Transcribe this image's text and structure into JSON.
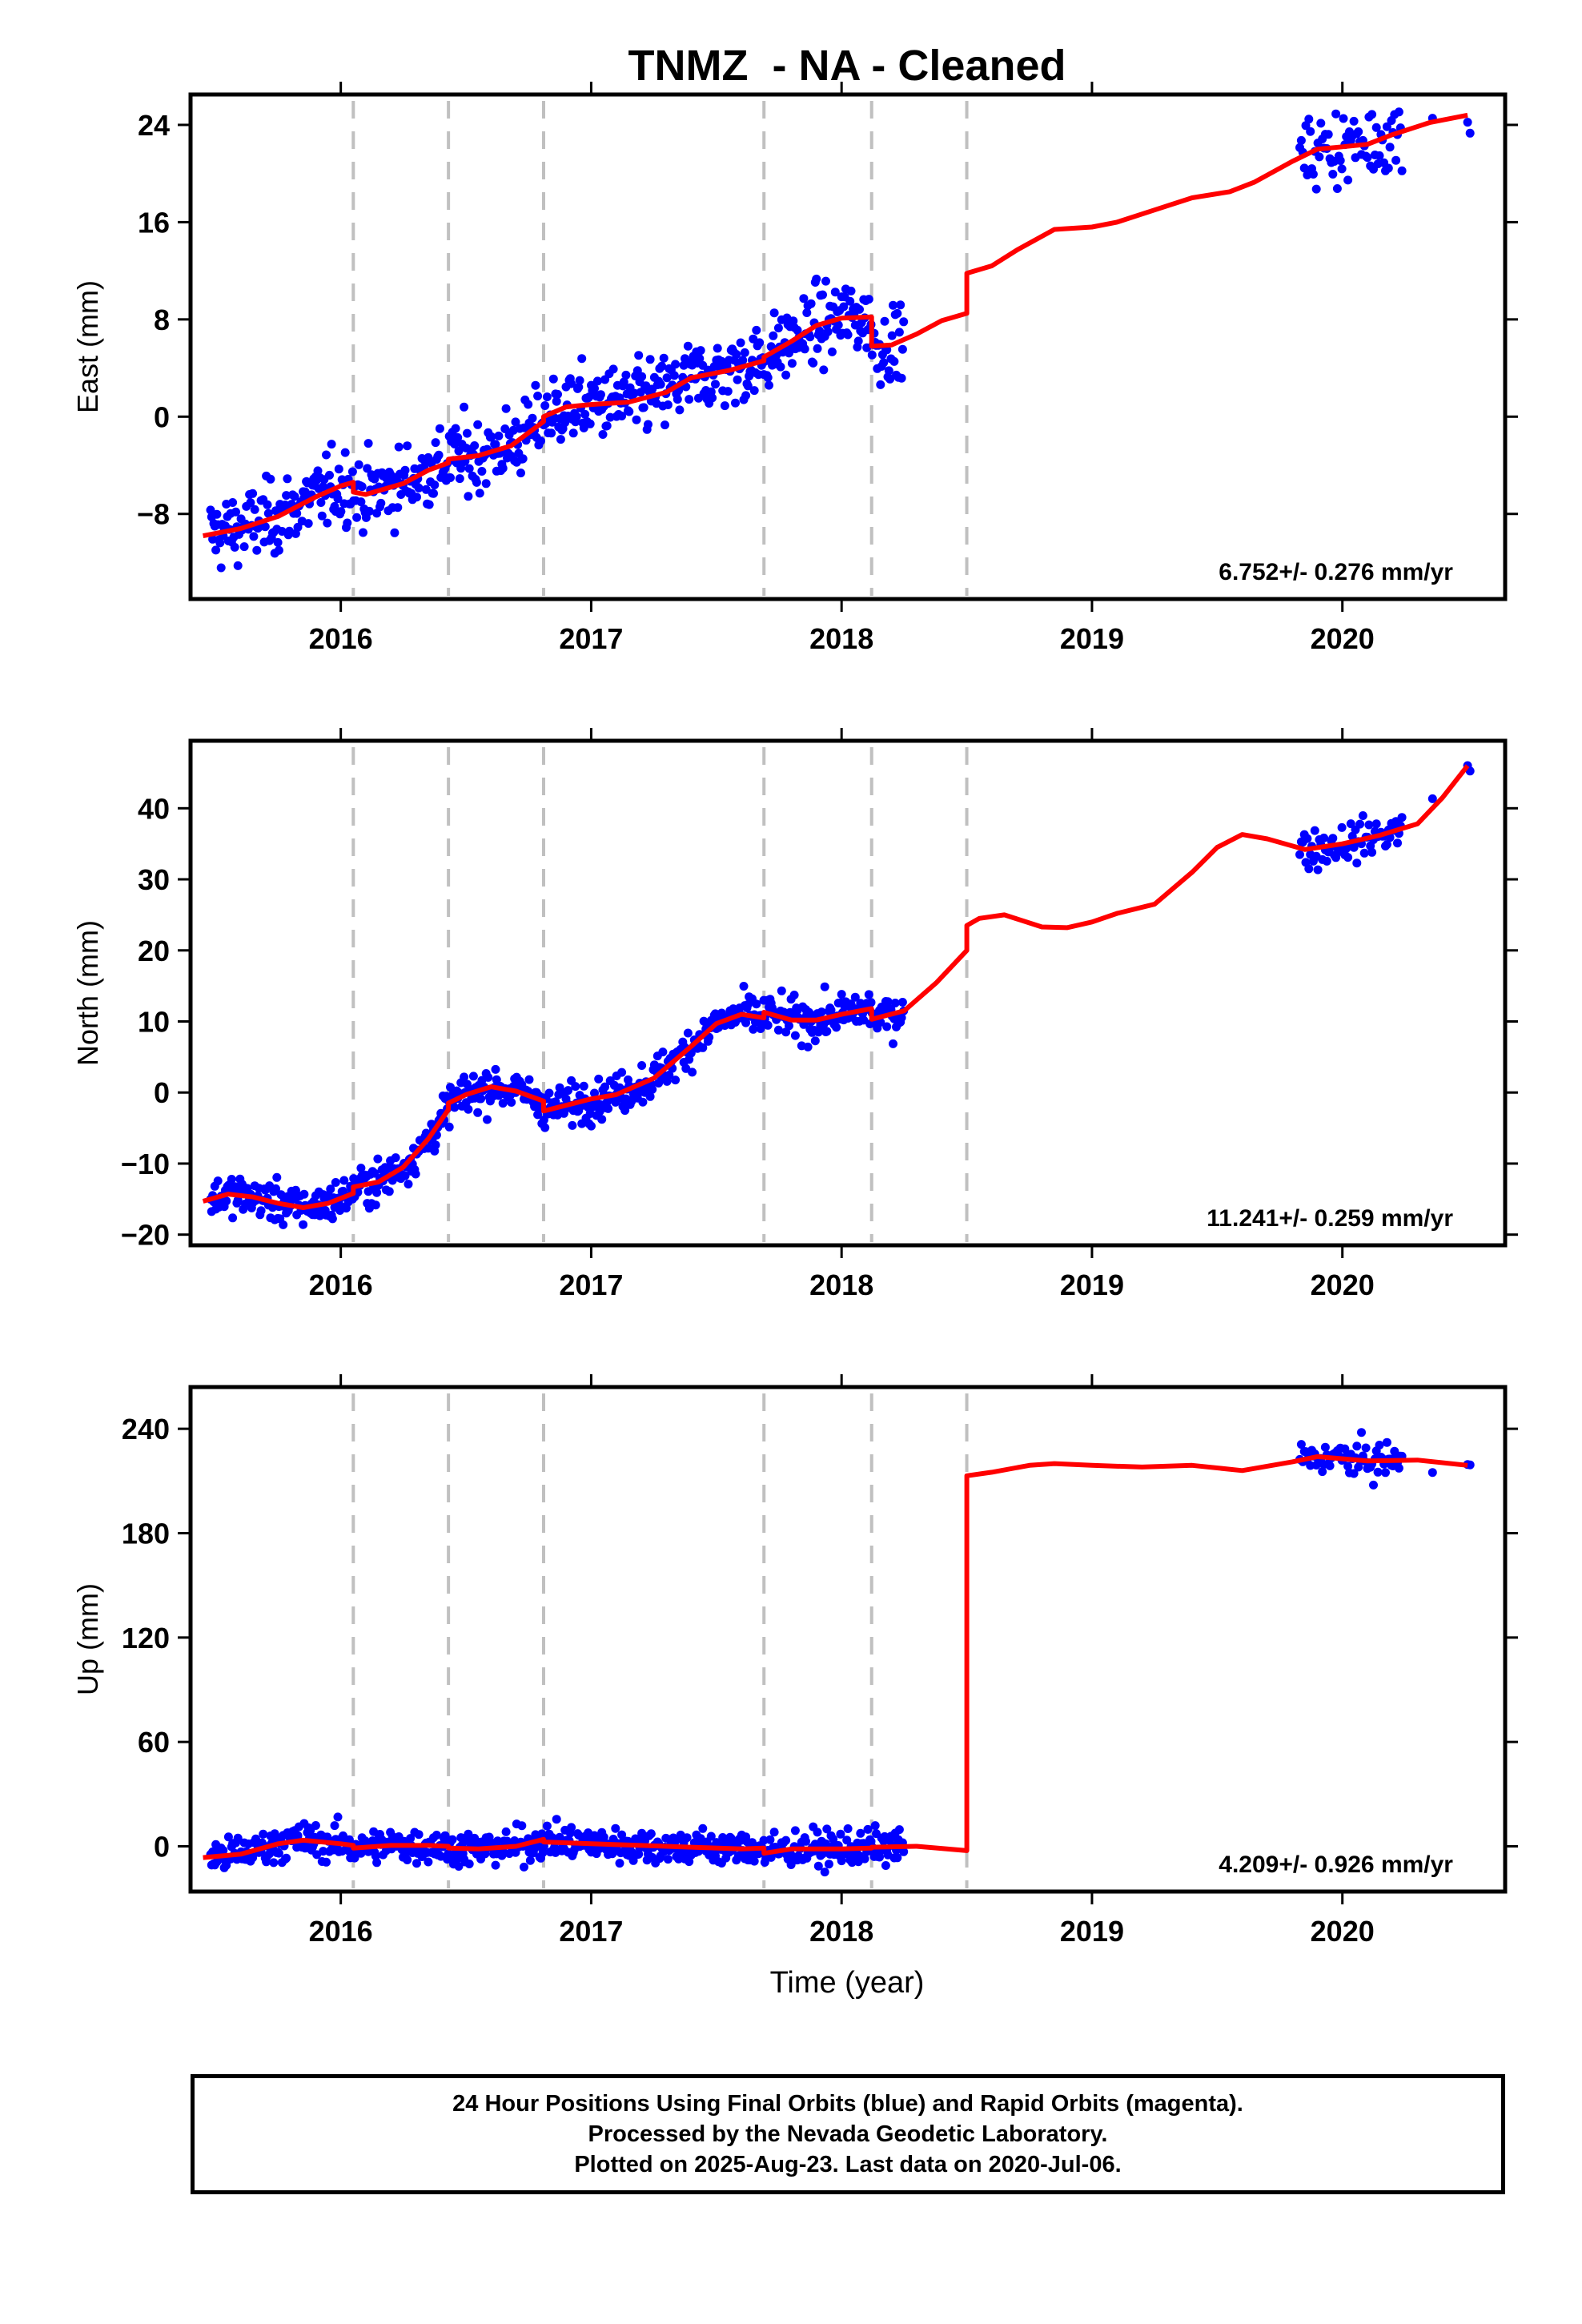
{
  "chart_data": {
    "type": "scatter",
    "title": "TNMZ  - NA - Cleaned",
    "xlabel": "Time (year)",
    "x_ticks": [
      "2016",
      "2017",
      "2018",
      "2019",
      "2020"
    ],
    "xlim": [
      2015.4,
      2020.65
    ],
    "grid": false,
    "equipment_change_lines": [
      2016.05,
      2016.43,
      2016.81,
      2017.69,
      2018.12,
      2018.5
    ],
    "colors": {
      "points": "#0000ff",
      "model": "#ff0000",
      "dashed_lines": "#c0c0c0",
      "axes": "#000000"
    },
    "panels": [
      {
        "name": "east",
        "ylabel": "East (mm)",
        "ylim": [
          -15,
          26.5
        ],
        "y_ticks": [
          -8,
          0,
          8,
          16,
          24
        ],
        "y_tick_labels": [
          "−8",
          "0",
          "8",
          "16",
          "24"
        ],
        "rate_label": "6.752+/- 0.276 mm/yr",
        "model": [
          [
            2015.45,
            -9.8
          ],
          [
            2015.6,
            -9.2
          ],
          [
            2015.75,
            -8.2
          ],
          [
            2015.9,
            -6.6
          ],
          [
            2016.0,
            -5.7
          ],
          [
            2016.05,
            -5.4
          ],
          [
            2016.05,
            -6.2
          ],
          [
            2016.1,
            -6.4
          ],
          [
            2016.25,
            -5.5
          ],
          [
            2016.35,
            -4.4
          ],
          [
            2016.43,
            -3.8
          ],
          [
            2016.43,
            -3.5
          ],
          [
            2016.55,
            -3.2
          ],
          [
            2016.68,
            -2.4
          ],
          [
            2016.81,
            -0.4
          ],
          [
            2016.81,
            0.0
          ],
          [
            2016.9,
            0.8
          ],
          [
            2017.0,
            1.0
          ],
          [
            2017.15,
            1.2
          ],
          [
            2017.3,
            2.0
          ],
          [
            2017.4,
            3.2
          ],
          [
            2017.55,
            3.8
          ],
          [
            2017.69,
            4.6
          ],
          [
            2017.69,
            4.9
          ],
          [
            2017.8,
            6.2
          ],
          [
            2017.9,
            7.5
          ],
          [
            2018.0,
            8.1
          ],
          [
            2018.12,
            8.2
          ],
          [
            2018.12,
            5.8
          ],
          [
            2018.2,
            5.9
          ],
          [
            2018.3,
            6.8
          ],
          [
            2018.4,
            7.9
          ],
          [
            2018.5,
            8.5
          ],
          [
            2018.5,
            11.8
          ],
          [
            2018.6,
            12.4
          ],
          [
            2018.7,
            13.7
          ],
          [
            2018.85,
            15.4
          ],
          [
            2019.0,
            15.6
          ],
          [
            2019.1,
            16.0
          ],
          [
            2019.25,
            17.0
          ],
          [
            2019.4,
            18.0
          ],
          [
            2019.55,
            18.5
          ],
          [
            2019.65,
            19.3
          ],
          [
            2019.8,
            21.0
          ],
          [
            2019.9,
            22.0
          ],
          [
            2020.0,
            22.2
          ],
          [
            2020.1,
            22.4
          ],
          [
            2020.2,
            23.2
          ],
          [
            2020.35,
            24.2
          ],
          [
            2020.5,
            24.8
          ]
        ]
      },
      {
        "name": "north",
        "ylabel": "North (mm)",
        "ylim": [
          -21.5,
          49.5
        ],
        "y_ticks": [
          -20,
          -10,
          0,
          10,
          20,
          30,
          40
        ],
        "y_tick_labels": [
          "−20",
          "−10",
          "0",
          "10",
          "20",
          "30",
          "40"
        ],
        "rate_label": "11.241+/- 0.259 mm/yr",
        "model": [
          [
            2015.45,
            -15.3
          ],
          [
            2015.55,
            -14.3
          ],
          [
            2015.65,
            -14.7
          ],
          [
            2015.75,
            -15.6
          ],
          [
            2015.85,
            -16.2
          ],
          [
            2015.95,
            -15.6
          ],
          [
            2016.05,
            -14.2
          ],
          [
            2016.05,
            -13.3
          ],
          [
            2016.15,
            -12.6
          ],
          [
            2016.25,
            -10.5
          ],
          [
            2016.35,
            -6.5
          ],
          [
            2016.43,
            -2.4
          ],
          [
            2016.43,
            -1.5
          ],
          [
            2016.5,
            -0.3
          ],
          [
            2016.6,
            0.8
          ],
          [
            2016.7,
            0.2
          ],
          [
            2016.81,
            -1.2
          ],
          [
            2016.81,
            -2.6
          ],
          [
            2016.9,
            -1.8
          ],
          [
            2017.0,
            -0.9
          ],
          [
            2017.1,
            -0.3
          ],
          [
            2017.25,
            2.0
          ],
          [
            2017.4,
            6.5
          ],
          [
            2017.5,
            9.7
          ],
          [
            2017.6,
            11.0
          ],
          [
            2017.69,
            10.5
          ],
          [
            2017.69,
            11.3
          ],
          [
            2017.8,
            10.2
          ],
          [
            2017.9,
            10.2
          ],
          [
            2018.0,
            11.0
          ],
          [
            2018.12,
            11.8
          ],
          [
            2018.12,
            10.3
          ],
          [
            2018.25,
            11.5
          ],
          [
            2018.38,
            15.5
          ],
          [
            2018.5,
            20.0
          ],
          [
            2018.5,
            23.5
          ],
          [
            2018.55,
            24.5
          ],
          [
            2018.65,
            25.0
          ],
          [
            2018.8,
            23.3
          ],
          [
            2018.9,
            23.2
          ],
          [
            2019.0,
            24.0
          ],
          [
            2019.1,
            25.2
          ],
          [
            2019.25,
            26.5
          ],
          [
            2019.4,
            31.0
          ],
          [
            2019.5,
            34.5
          ],
          [
            2019.6,
            36.3
          ],
          [
            2019.7,
            35.7
          ],
          [
            2019.85,
            34.2
          ],
          [
            2020.0,
            35.0
          ],
          [
            2020.15,
            36.2
          ],
          [
            2020.3,
            37.8
          ],
          [
            2020.4,
            41.5
          ],
          [
            2020.5,
            46.0
          ]
        ]
      },
      {
        "name": "up",
        "ylabel": "Up (mm)",
        "ylim": [
          -26,
          264
        ],
        "y_ticks": [
          0,
          60,
          120,
          180,
          240
        ],
        "y_tick_labels": [
          "0",
          "60",
          "120",
          "180",
          "240"
        ],
        "rate_label": "4.209+/- 0.926 mm/yr",
        "model": [
          [
            2015.45,
            -6.5
          ],
          [
            2015.6,
            -4.5
          ],
          [
            2015.75,
            1.5
          ],
          [
            2015.85,
            3.5
          ],
          [
            2016.0,
            1.5
          ],
          [
            2016.05,
            0.5
          ],
          [
            2016.05,
            -1.0
          ],
          [
            2016.2,
            0.5
          ],
          [
            2016.35,
            0.5
          ],
          [
            2016.43,
            0.0
          ],
          [
            2016.43,
            -1.0
          ],
          [
            2016.55,
            -1.5
          ],
          [
            2016.7,
            0.0
          ],
          [
            2016.81,
            4.0
          ],
          [
            2016.81,
            2.5
          ],
          [
            2017.0,
            1.5
          ],
          [
            2017.2,
            0.5
          ],
          [
            2017.4,
            -0.5
          ],
          [
            2017.6,
            -1.5
          ],
          [
            2017.69,
            -1.0
          ],
          [
            2017.69,
            -4.0
          ],
          [
            2017.8,
            -1.5
          ],
          [
            2018.0,
            -1.5
          ],
          [
            2018.12,
            -1.0
          ],
          [
            2018.12,
            -0.5
          ],
          [
            2018.3,
            0.0
          ],
          [
            2018.5,
            -2.5
          ],
          [
            2018.5,
            213.0
          ],
          [
            2018.6,
            215.0
          ],
          [
            2018.75,
            219.0
          ],
          [
            2018.85,
            220.0
          ],
          [
            2019.0,
            219.0
          ],
          [
            2019.2,
            218.0
          ],
          [
            2019.4,
            219.0
          ],
          [
            2019.6,
            216.0
          ],
          [
            2019.8,
            221.0
          ],
          [
            2019.9,
            224.0
          ],
          [
            2020.1,
            221.5
          ],
          [
            2020.3,
            222.0
          ],
          [
            2020.5,
            219.0
          ]
        ]
      }
    ]
  },
  "footer": {
    "line1": "24 Hour Positions Using Final Orbits (blue) and Rapid Orbits (magenta).",
    "line2": "Processed by the Nevada Geodetic Laboratory.",
    "line3": "Plotted on 2025-Aug-23. Last data on 2020-Jul-06."
  }
}
